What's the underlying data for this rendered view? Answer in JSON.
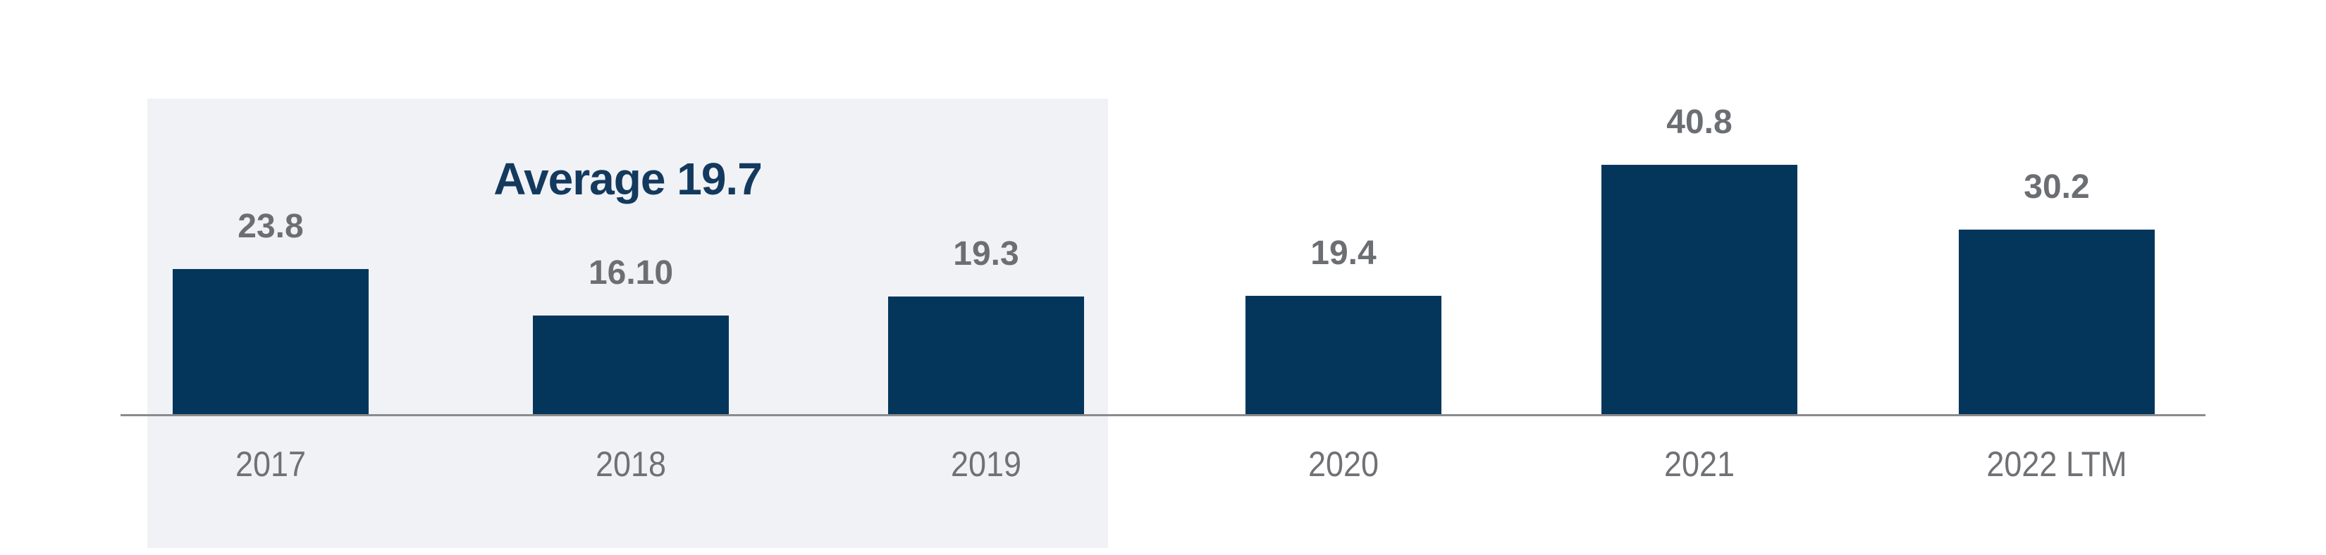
{
  "chart_data": {
    "type": "bar",
    "title": "",
    "xlabel": "",
    "ylabel": "",
    "categories": [
      "2017",
      "2018",
      "2019",
      "2020",
      "2021",
      "2022 LTM"
    ],
    "values": [
      23.8,
      16.1,
      19.3,
      19.4,
      40.8,
      30.2
    ],
    "values_display": [
      "23.8",
      "16.10",
      "19.3",
      "19.4",
      "40.8",
      "30.2"
    ],
    "ylim": [
      0,
      45
    ],
    "grid": false,
    "legend": "none",
    "annotations": {
      "average_label": "Average 19.7",
      "average_value": 19.7,
      "average_span_categories": [
        "2017",
        "2018",
        "2019"
      ]
    },
    "colors": {
      "bar": "#04365c",
      "value_label": "#6b6e73",
      "axis_label": "#6f7175",
      "average_text": "#133a5e",
      "highlight_panel": "#f1f2f6",
      "axis_line": "#8a8b8d",
      "background": "#ffffff"
    }
  }
}
